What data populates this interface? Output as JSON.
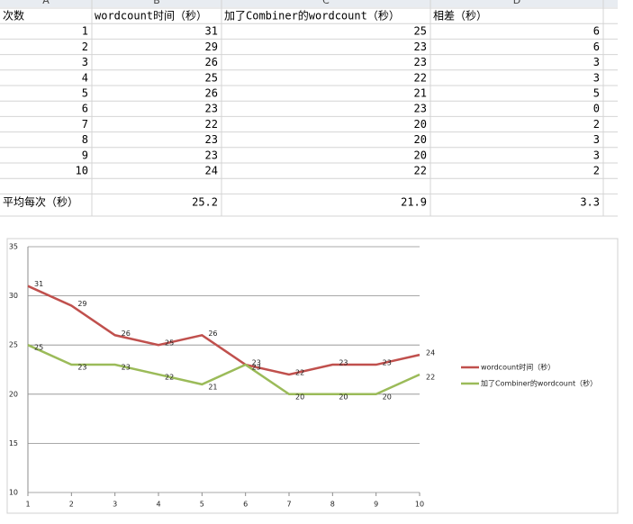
{
  "table": {
    "columns": [
      "A",
      "B",
      "C",
      "D"
    ],
    "header": [
      "次数",
      "wordcount时间（秒）",
      "加了Combiner的wordcount（秒）",
      "相差（秒）"
    ],
    "rows": [
      [
        1,
        31,
        25,
        6
      ],
      [
        2,
        29,
        23,
        6
      ],
      [
        3,
        26,
        23,
        3
      ],
      [
        4,
        25,
        22,
        3
      ],
      [
        5,
        26,
        21,
        5
      ],
      [
        6,
        23,
        23,
        0
      ],
      [
        7,
        22,
        20,
        2
      ],
      [
        8,
        23,
        20,
        3
      ],
      [
        9,
        23,
        20,
        3
      ],
      [
        10,
        24,
        22,
        2
      ]
    ],
    "average": {
      "label": "平均每次（秒）",
      "values": [
        25.2,
        21.9,
        3.3
      ]
    }
  },
  "chart_data": {
    "type": "line",
    "x": [
      1,
      2,
      3,
      4,
      5,
      6,
      7,
      8,
      9,
      10
    ],
    "xlim": [
      1,
      10
    ],
    "xticks": [
      1,
      2,
      3,
      4,
      5,
      6,
      7,
      8,
      9,
      10
    ],
    "ylim": [
      10,
      35
    ],
    "yticks": [
      10,
      15,
      20,
      25,
      30,
      35
    ],
    "grid": true,
    "legend": "right",
    "data_labels": true,
    "series": [
      {
        "name": "wordcount时间（秒）",
        "color": "#c0504d",
        "values": [
          31,
          29,
          26,
          25,
          26,
          23,
          22,
          23,
          23,
          24
        ]
      },
      {
        "name": "加了Combiner的wordcount（秒）",
        "color": "#9bbb59",
        "values": [
          25,
          23,
          23,
          22,
          21,
          23,
          20,
          20,
          20,
          22
        ]
      }
    ]
  }
}
